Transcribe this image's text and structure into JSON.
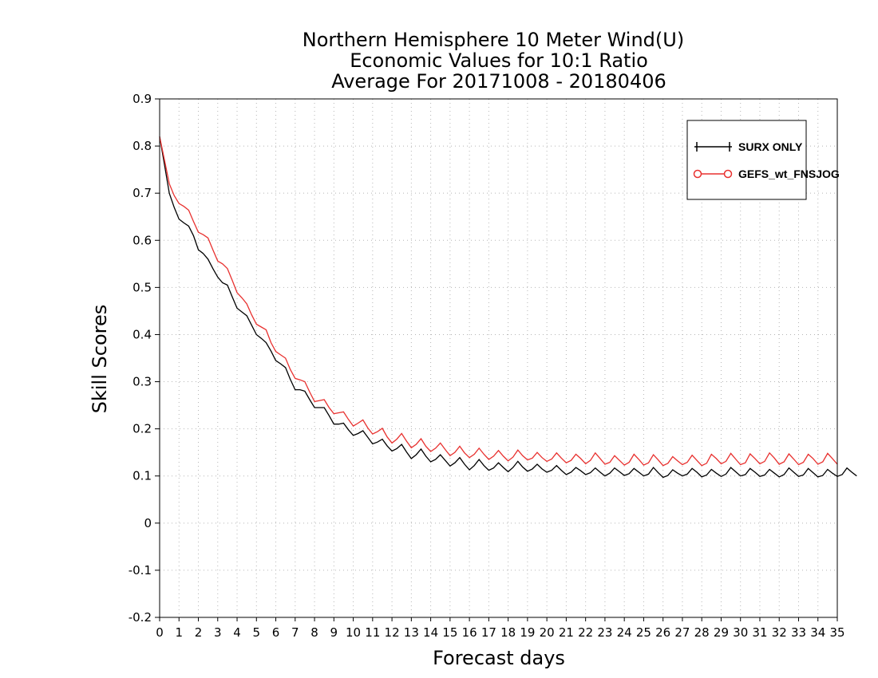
{
  "chart_data": {
    "type": "line",
    "title": [
      "Northern Hemisphere 10 Meter Wind(U)",
      "Economic Values for 10:1 Ratio",
      "Average For 20171008 - 20180406"
    ],
    "xlabel": "Forecast days",
    "ylabel": "Skill Scores",
    "xlim": [
      0,
      35
    ],
    "ylim": [
      -0.2,
      0.9
    ],
    "grid": true,
    "legend_position": "top-right",
    "x_ticks": [
      "0",
      "1",
      "2",
      "3",
      "4",
      "5",
      "6",
      "7",
      "8",
      "9",
      "10",
      "11",
      "12",
      "13",
      "14",
      "15",
      "16",
      "17",
      "18",
      "19",
      "20",
      "21",
      "22",
      "23",
      "24",
      "25",
      "26",
      "27",
      "28",
      "29",
      "30",
      "31",
      "32",
      "33",
      "34",
      "35"
    ],
    "y_ticks": [
      "0.9",
      "0.8",
      "0.7",
      "0.6",
      "0.5",
      "0.4",
      "0.3",
      "0.2",
      "0.1",
      "0",
      "-0.1",
      "-0.2"
    ],
    "x_step": 0.25,
    "series": [
      {
        "name": "SURX ONLY",
        "color": "#000000",
        "marker": "plus",
        "values": [
          0.82,
          0.76,
          0.7,
          0.67,
          0.645,
          0.637,
          0.63,
          0.61,
          0.58,
          0.572,
          0.56,
          0.54,
          0.522,
          0.51,
          0.505,
          0.48,
          0.456,
          0.448,
          0.44,
          0.42,
          0.4,
          0.392,
          0.383,
          0.365,
          0.345,
          0.338,
          0.33,
          0.305,
          0.283,
          0.283,
          0.28,
          0.262,
          0.245,
          0.245,
          0.245,
          0.228,
          0.21,
          0.21,
          0.212,
          0.198,
          0.186,
          0.19,
          0.196,
          0.182,
          0.168,
          0.172,
          0.178,
          0.164,
          0.153,
          0.158,
          0.167,
          0.151,
          0.137,
          0.145,
          0.157,
          0.142,
          0.13,
          0.135,
          0.145,
          0.133,
          0.121,
          0.128,
          0.139,
          0.125,
          0.113,
          0.122,
          0.135,
          0.122,
          0.112,
          0.117,
          0.128,
          0.118,
          0.109,
          0.118,
          0.131,
          0.119,
          0.11,
          0.115,
          0.125,
          0.115,
          0.108,
          0.112,
          0.122,
          0.112,
          0.103,
          0.108,
          0.118,
          0.111,
          0.103,
          0.107,
          0.117,
          0.108,
          0.1,
          0.106,
          0.117,
          0.109,
          0.101,
          0.105,
          0.116,
          0.108,
          0.1,
          0.104,
          0.118,
          0.107,
          0.097,
          0.101,
          0.113,
          0.106,
          0.1,
          0.104,
          0.116,
          0.108,
          0.098,
          0.102,
          0.114,
          0.106,
          0.099,
          0.104,
          0.118,
          0.109,
          0.1,
          0.103,
          0.116,
          0.108,
          0.099,
          0.102,
          0.114,
          0.106,
          0.098,
          0.103,
          0.117,
          0.108,
          0.099,
          0.102,
          0.116,
          0.107,
          0.098,
          0.101,
          0.114,
          0.106,
          0.099,
          0.103,
          0.117,
          0.108,
          0.1
        ]
      },
      {
        "name": "GEFS_wt_FNSJOG",
        "color": "#e8312f",
        "marker": "circle",
        "values": [
          0.82,
          0.77,
          0.72,
          0.695,
          0.678,
          0.672,
          0.664,
          0.64,
          0.617,
          0.612,
          0.605,
          0.58,
          0.556,
          0.55,
          0.54,
          0.515,
          0.489,
          0.478,
          0.465,
          0.442,
          0.422,
          0.416,
          0.41,
          0.383,
          0.364,
          0.357,
          0.35,
          0.326,
          0.307,
          0.304,
          0.3,
          0.278,
          0.258,
          0.26,
          0.262,
          0.245,
          0.232,
          0.234,
          0.236,
          0.22,
          0.206,
          0.212,
          0.219,
          0.202,
          0.189,
          0.194,
          0.201,
          0.183,
          0.17,
          0.178,
          0.19,
          0.174,
          0.16,
          0.167,
          0.179,
          0.163,
          0.152,
          0.159,
          0.17,
          0.156,
          0.143,
          0.15,
          0.163,
          0.149,
          0.139,
          0.146,
          0.159,
          0.146,
          0.135,
          0.142,
          0.154,
          0.142,
          0.132,
          0.14,
          0.155,
          0.143,
          0.134,
          0.138,
          0.15,
          0.139,
          0.131,
          0.136,
          0.149,
          0.138,
          0.128,
          0.133,
          0.146,
          0.137,
          0.126,
          0.133,
          0.149,
          0.137,
          0.125,
          0.129,
          0.143,
          0.133,
          0.123,
          0.129,
          0.146,
          0.135,
          0.123,
          0.128,
          0.145,
          0.134,
          0.122,
          0.127,
          0.141,
          0.132,
          0.124,
          0.129,
          0.144,
          0.133,
          0.122,
          0.127,
          0.146,
          0.137,
          0.126,
          0.131,
          0.148,
          0.136,
          0.124,
          0.128,
          0.147,
          0.137,
          0.126,
          0.131,
          0.149,
          0.138,
          0.125,
          0.13,
          0.147,
          0.136,
          0.124,
          0.129,
          0.146,
          0.137,
          0.125,
          0.13,
          0.148,
          0.137,
          0.125
        ]
      }
    ]
  }
}
